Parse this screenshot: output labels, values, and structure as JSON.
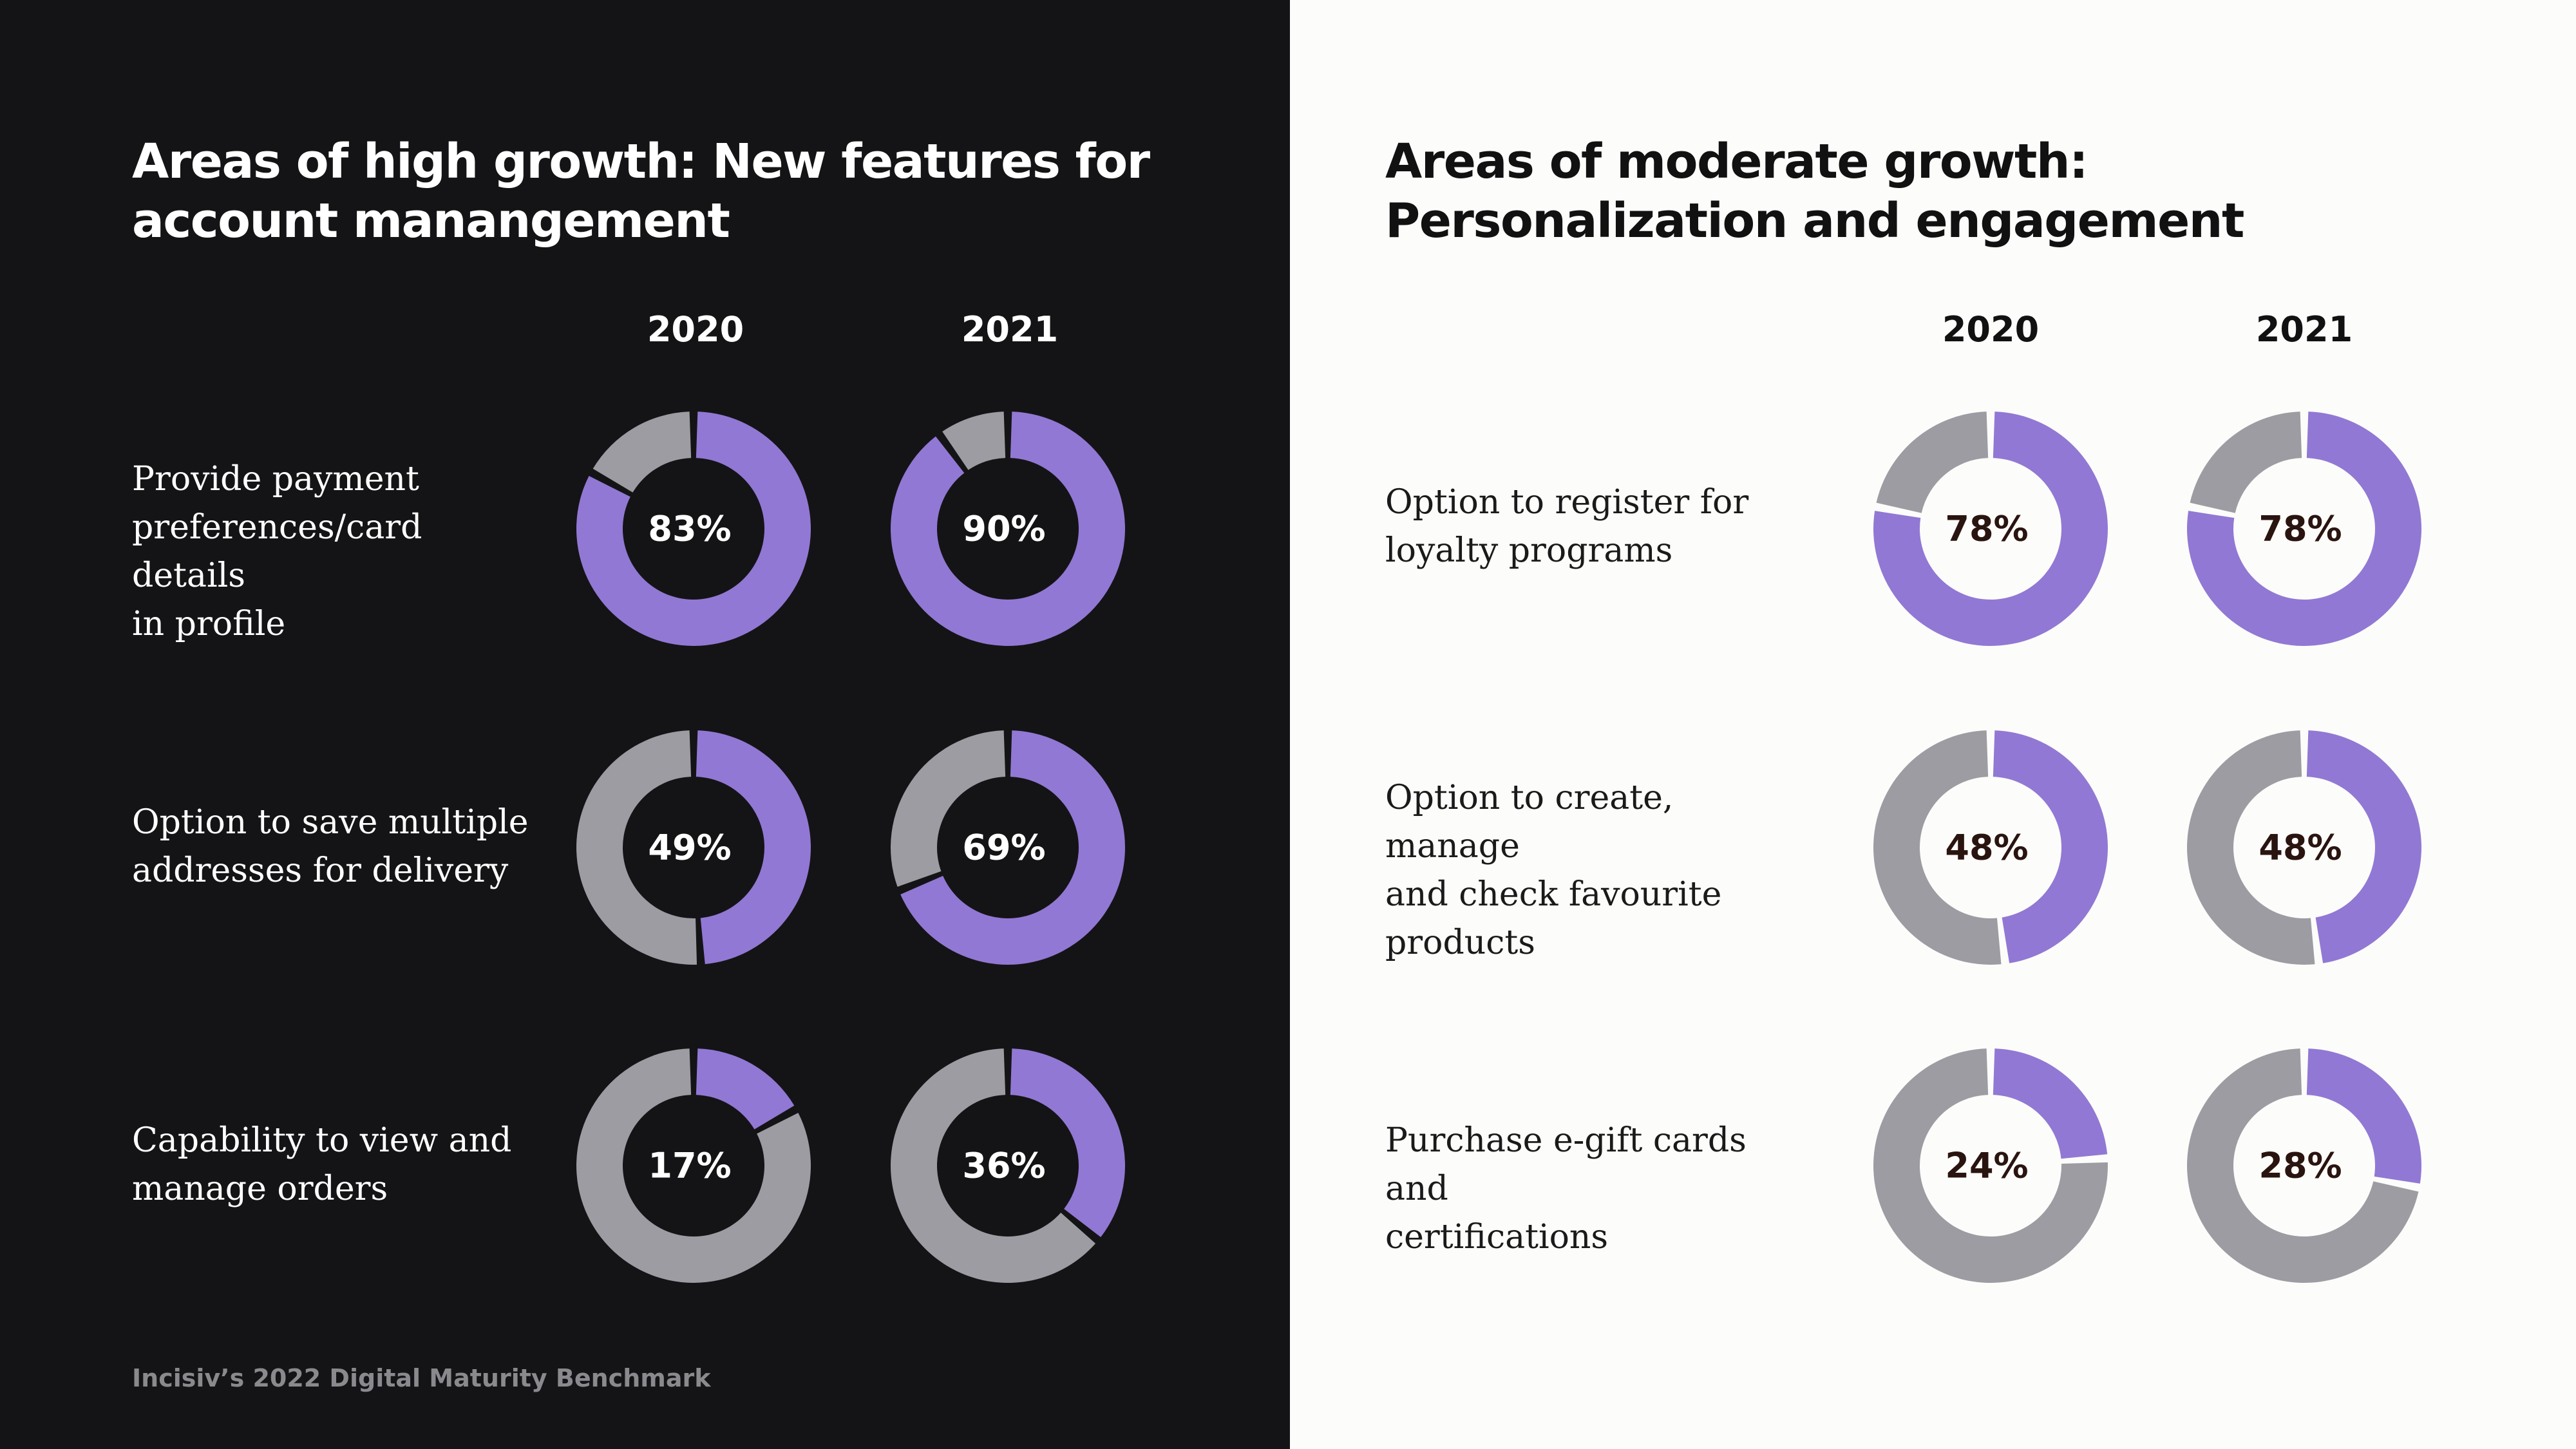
{
  "colors": {
    "filled": "#9178d4",
    "remaining": "#9d9ca2",
    "dark_bg": "#141416",
    "light_bg": "#fcfcfa",
    "dark_text": "#ffffff",
    "light_text": "#2a1410"
  },
  "left_panel": {
    "title": "Areas of high growth: New features for account manangement",
    "years": [
      "2020",
      "2021"
    ],
    "rows": [
      {
        "label": "Provide payment\npreferences/card details\nin profile"
      },
      {
        "label": "Option to save multiple\naddresses for delivery"
      },
      {
        "label": "Capability to view and\nmanage orders"
      }
    ]
  },
  "right_panel": {
    "title": "Areas of moderate growth: Personalization and engagement",
    "years": [
      "2020",
      "2021"
    ],
    "rows": [
      {
        "label": "Option to register for\nloyalty programs"
      },
      {
        "label": "Option to create, manage\nand check favourite\nproducts"
      },
      {
        "label": "Purchase e-gift cards and\ncertifications"
      }
    ]
  },
  "chart_data": [
    {
      "type": "pie",
      "title": "Areas of high growth: New features for account manangement",
      "categories": [
        "Provide payment preferences/card details in profile",
        "Option to save multiple addresses for delivery",
        "Capability to view and manage orders"
      ],
      "series": [
        {
          "name": "2020",
          "values": [
            83,
            49,
            17
          ],
          "labels": [
            "83%",
            "49%",
            "17%"
          ]
        },
        {
          "name": "2021",
          "values": [
            90,
            69,
            36
          ],
          "labels": [
            "90%",
            "69%",
            "36%"
          ]
        }
      ]
    },
    {
      "type": "pie",
      "title": "Areas of moderate growth: Personalization and engagement",
      "categories": [
        "Option to register for loyalty programs",
        "Option to create, manage and check favourite products",
        "Purchase e-gift cards and certifications"
      ],
      "series": [
        {
          "name": "2020",
          "values": [
            78,
            48,
            24
          ],
          "labels": [
            "78%",
            "48%",
            "24%"
          ]
        },
        {
          "name": "2021",
          "values": [
            78,
            48,
            28
          ],
          "labels": [
            "78%",
            "48%",
            "28%"
          ]
        }
      ]
    }
  ],
  "footer": "Incisiv’s 2022 Digital Maturity Benchmark"
}
